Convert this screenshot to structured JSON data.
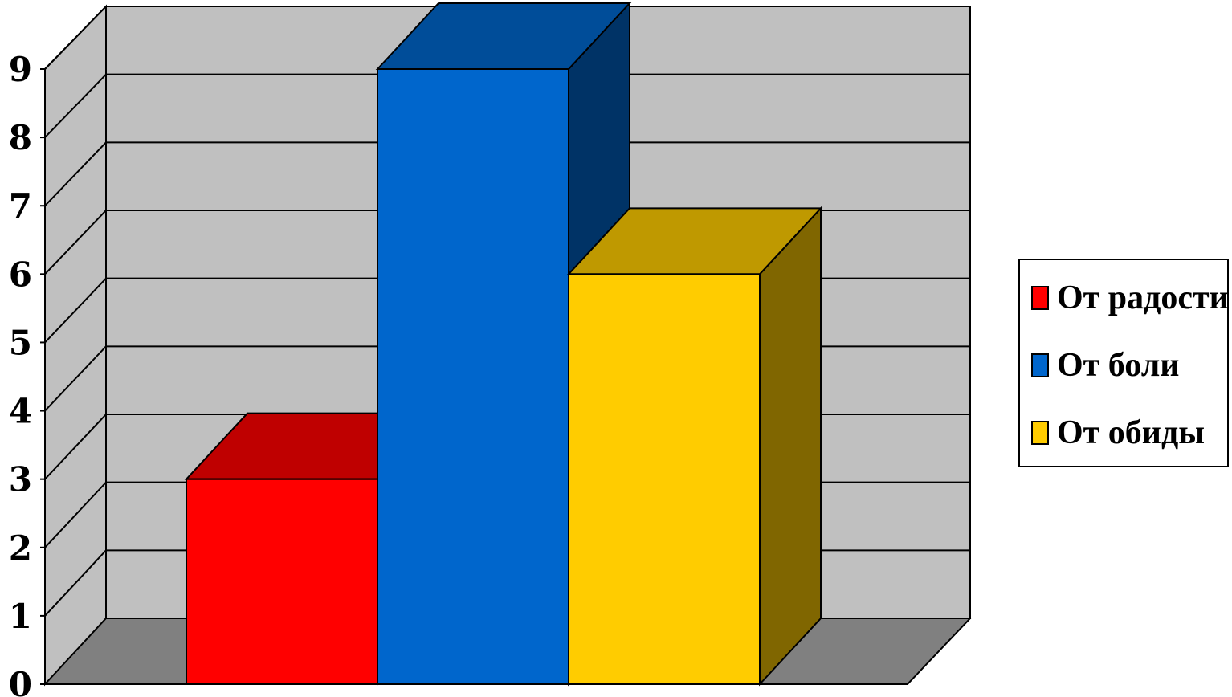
{
  "chart_data": {
    "type": "bar",
    "style": "3d",
    "categories": [
      "От радости",
      "От боли",
      "От обиды"
    ],
    "values": [
      3,
      9,
      6
    ],
    "colors": [
      "#ff0000",
      "#0066cc",
      "#ffcc00"
    ],
    "yticks": [
      "0",
      "1",
      "2",
      "3",
      "4",
      "5",
      "6",
      "7",
      "8",
      "9"
    ],
    "ylim": [
      0,
      9
    ],
    "grid": true,
    "legend_position": "right"
  },
  "legend": {
    "items": [
      {
        "label": "От радости",
        "color": "#ff0000"
      },
      {
        "label": "От боли",
        "color": "#0066cc"
      },
      {
        "label": "От обиды",
        "color": "#ffcc00"
      }
    ]
  }
}
